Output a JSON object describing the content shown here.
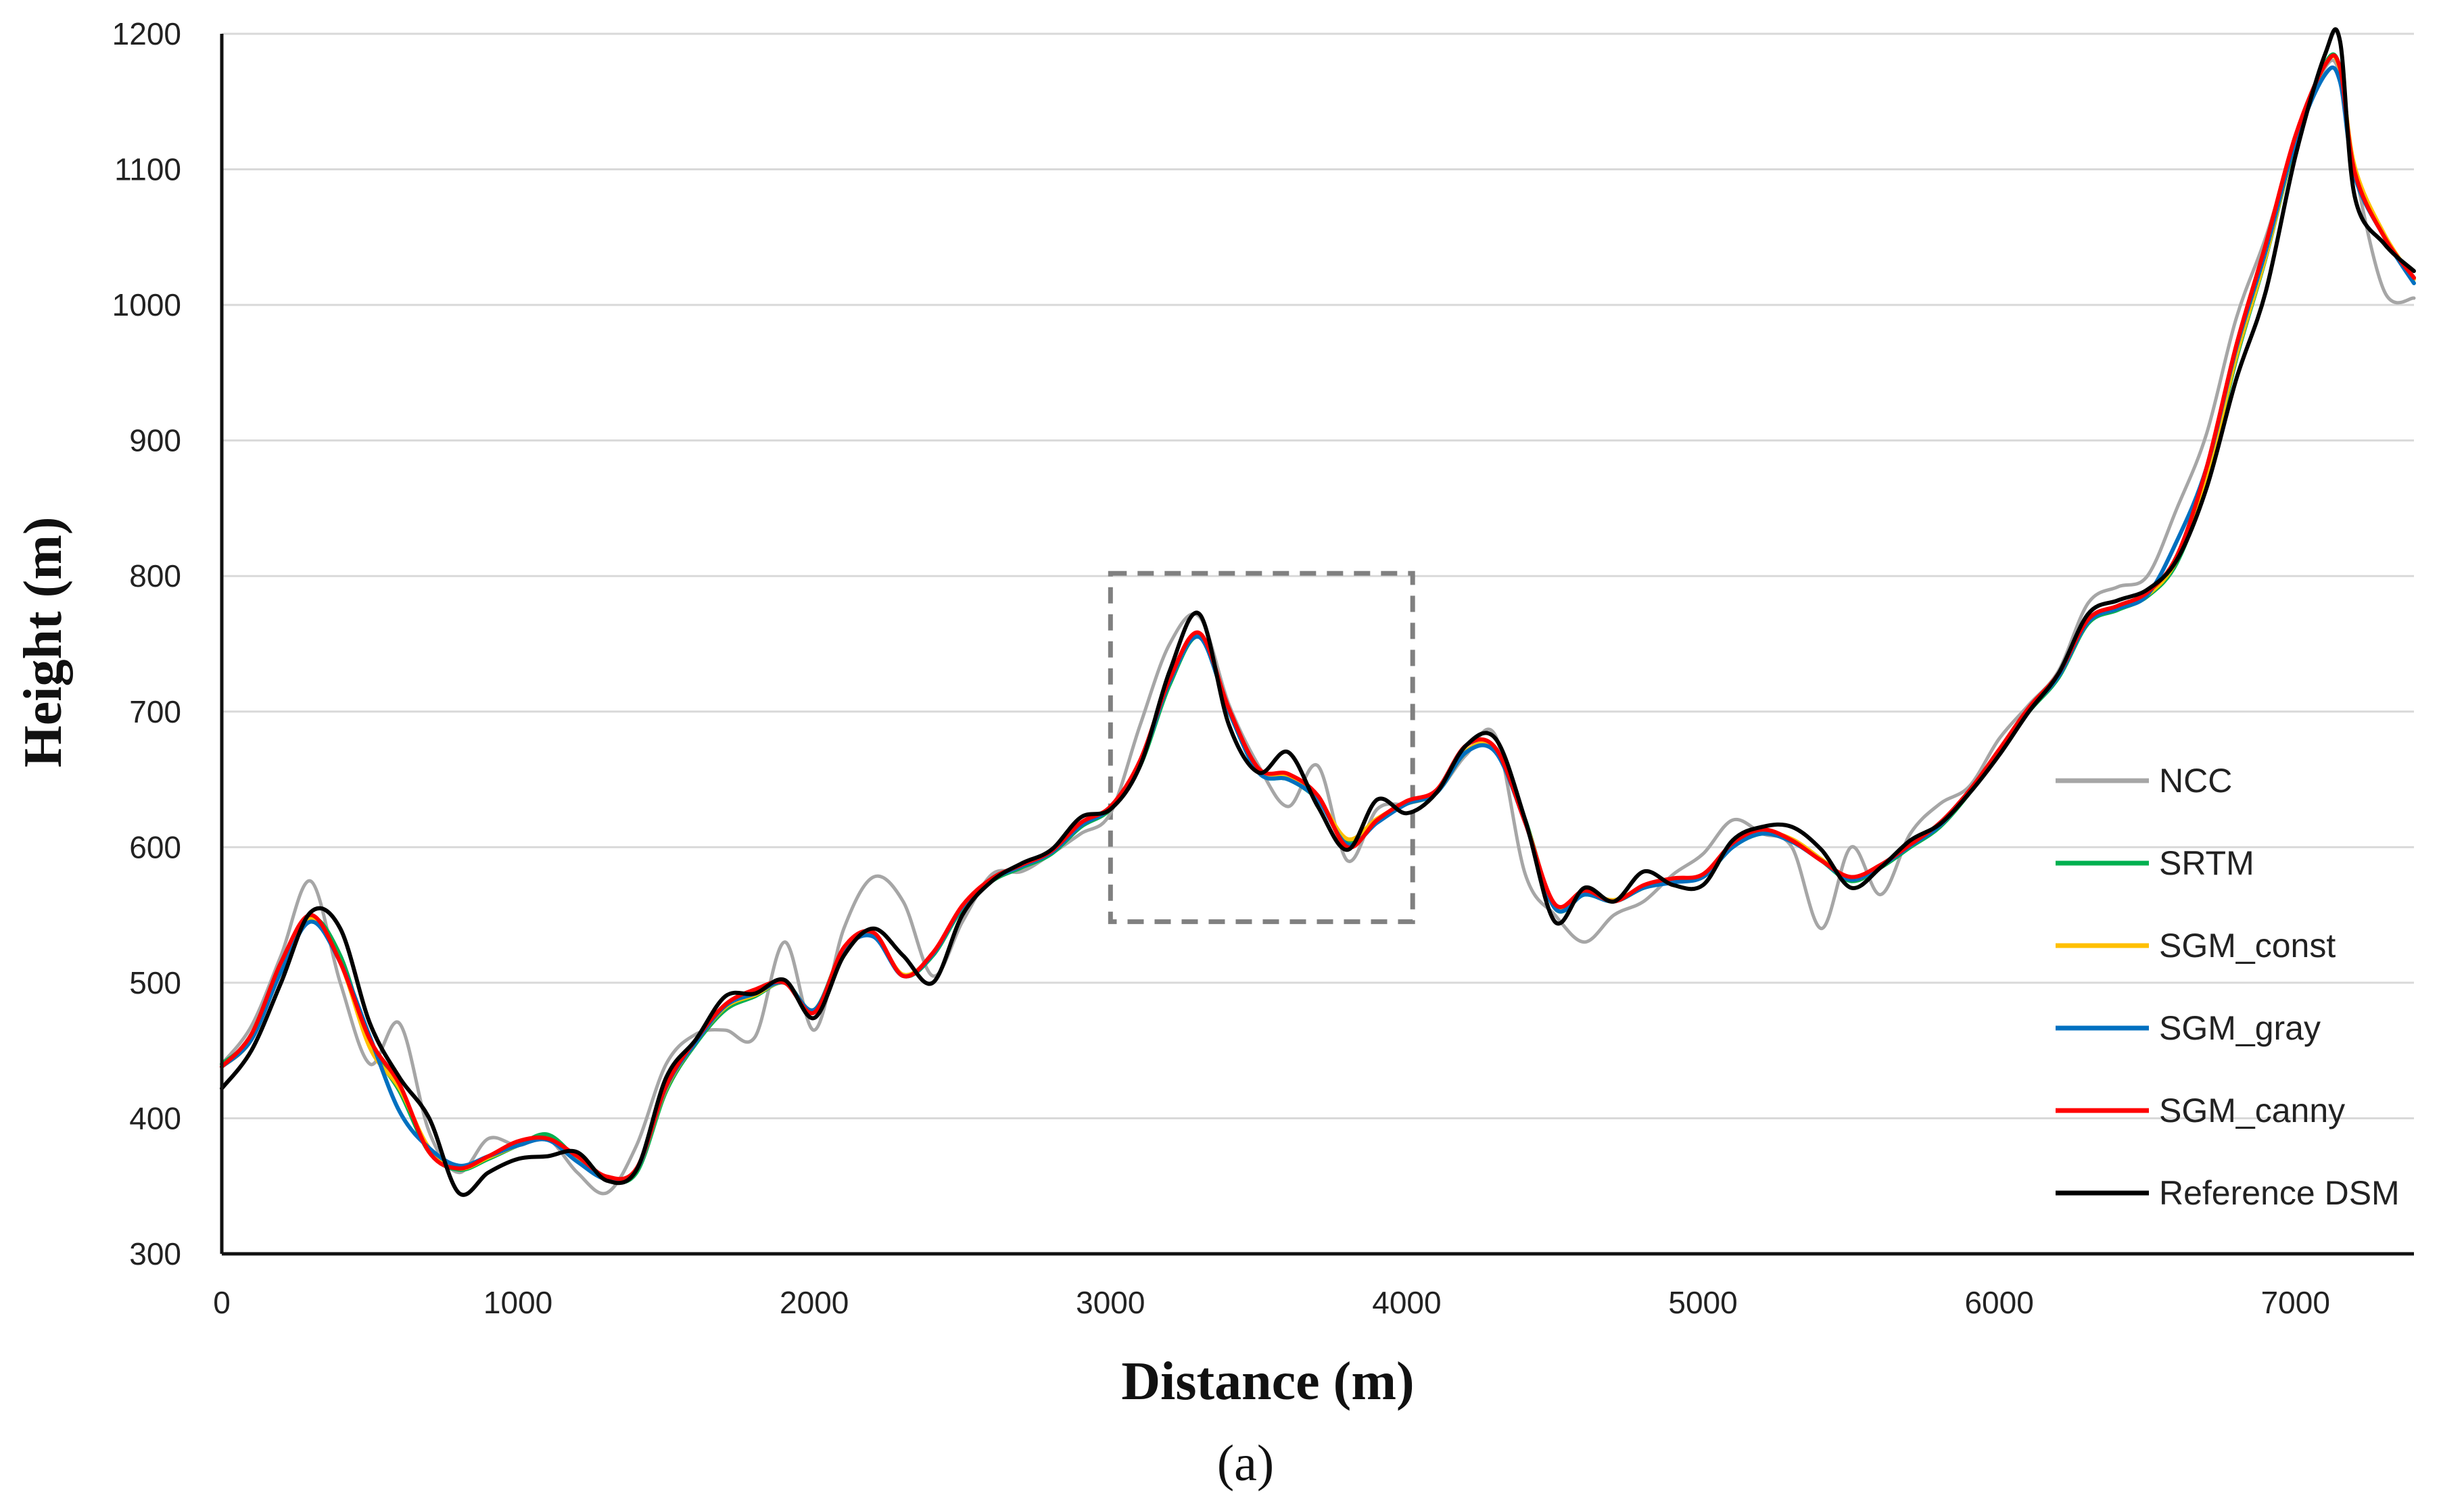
{
  "chart_data": {
    "type": "line",
    "xlabel": "Distance (m)",
    "ylabel": "Height (m)",
    "caption": "(a)",
    "xlim": [
      0,
      7400
    ],
    "ylim": [
      300,
      1200
    ],
    "xticks": [
      0,
      1000,
      2000,
      3000,
      4000,
      5000,
      6000,
      7000
    ],
    "yticks": [
      300,
      400,
      500,
      600,
      700,
      800,
      900,
      1000,
      1100,
      1200
    ],
    "grid": "horizontal",
    "legend_position": "right",
    "highlight_box": {
      "x": [
        3000,
        4020
      ],
      "y": [
        545,
        802
      ]
    },
    "colors": {
      "NCC": "#a6a6a6",
      "SRTM": "#00b050",
      "SGM_const": "#ffc000",
      "SGM_gray": "#0070c0",
      "SGM_canny": "#ff0000",
      "Reference DSM": "#000000",
      "grid": "#d9d9d9",
      "box": "#808080"
    },
    "x": [
      0,
      100,
      200,
      300,
      400,
      500,
      600,
      700,
      800,
      900,
      1000,
      1100,
      1200,
      1300,
      1400,
      1500,
      1600,
      1700,
      1800,
      1900,
      2000,
      2100,
      2200,
      2300,
      2400,
      2500,
      2600,
      2700,
      2800,
      2900,
      3000,
      3100,
      3200,
      3300,
      3400,
      3500,
      3600,
      3700,
      3800,
      3900,
      4000,
      4100,
      4200,
      4300,
      4400,
      4500,
      4600,
      4700,
      4800,
      4900,
      5000,
      5100,
      5200,
      5300,
      5400,
      5500,
      5600,
      5700,
      5800,
      5900,
      6000,
      6100,
      6200,
      6300,
      6400,
      6500,
      6600,
      6700,
      6800,
      6900,
      7000,
      7100,
      7150,
      7200,
      7300,
      7400
    ],
    "series": [
      {
        "name": "NCC",
        "values": [
          440,
          468,
          520,
          575,
          500,
          440,
          470,
          390,
          360,
          385,
          380,
          385,
          360,
          345,
          380,
          440,
          462,
          465,
          460,
          530,
          465,
          540,
          578,
          560,
          505,
          545,
          580,
          582,
          595,
          610,
          625,
          690,
          750,
          770,
          705,
          660,
          630,
          660,
          590,
          628,
          632,
          640,
          668,
          682,
          580,
          550,
          530,
          550,
          560,
          580,
          595,
          620,
          610,
          600,
          540,
          600,
          565,
          610,
          632,
          645,
          680,
          705,
          730,
          780,
          792,
          800,
          850,
          905,
          990,
          1050,
          1120,
          1175,
          1170,
          1100,
          1010,
          1005
        ],
        "color": "#a6a6a6"
      },
      {
        "name": "SRTM",
        "values": [
          440,
          460,
          510,
          548,
          520,
          455,
          420,
          375,
          362,
          370,
          380,
          388,
          370,
          355,
          360,
          420,
          455,
          480,
          490,
          500,
          480,
          525,
          535,
          505,
          520,
          555,
          575,
          585,
          595,
          615,
          628,
          660,
          720,
          755,
          700,
          655,
          650,
          635,
          605,
          620,
          632,
          640,
          670,
          672,
          620,
          555,
          565,
          560,
          570,
          575,
          578,
          600,
          610,
          605,
          590,
          575,
          585,
          600,
          615,
          640,
          670,
          700,
          725,
          765,
          775,
          785,
          810,
          870,
          960,
          1035,
          1120,
          1178,
          1175,
          1100,
          1050,
          1020
        ],
        "color": "#00b050"
      },
      {
        "name": "SGM_const",
        "values": [
          438,
          458,
          510,
          547,
          515,
          452,
          422,
          378,
          363,
          371,
          380,
          385,
          370,
          356,
          362,
          422,
          456,
          482,
          491,
          500,
          480,
          524,
          535,
          506,
          521,
          556,
          576,
          586,
          596,
          616,
          629,
          662,
          722,
          756,
          700,
          656,
          651,
          636,
          606,
          621,
          633,
          641,
          671,
          672,
          619,
          556,
          566,
          561,
          571,
          576,
          579,
          601,
          611,
          606,
          591,
          576,
          586,
          601,
          616,
          641,
          671,
          701,
          726,
          766,
          776,
          786,
          812,
          872,
          962,
          1036,
          1121,
          1177,
          1174,
          1102,
          1052,
          1019
        ],
        "color": "#ffc000"
      },
      {
        "name": "SGM_gray",
        "values": [
          438,
          458,
          508,
          545,
          515,
          460,
          405,
          378,
          365,
          372,
          380,
          384,
          368,
          355,
          362,
          423,
          456,
          483,
          492,
          500,
          480,
          524,
          534,
          505,
          521,
          556,
          576,
          586,
          596,
          616,
          629,
          662,
          722,
          755,
          700,
          655,
          650,
          635,
          602,
          618,
          632,
          640,
          670,
          670,
          618,
          555,
          565,
          560,
          570,
          574,
          578,
          600,
          610,
          604,
          590,
          576,
          586,
          601,
          616,
          641,
          671,
          701,
          726,
          766,
          776,
          786,
          826,
          880,
          968,
          1040,
          1120,
          1170,
          1165,
          1095,
          1050,
          1016
        ],
        "color": "#0070c0"
      },
      {
        "name": "SGM_canny",
        "values": [
          438,
          462,
          515,
          550,
          515,
          458,
          425,
          375,
          363,
          372,
          383,
          385,
          372,
          357,
          363,
          424,
          458,
          484,
          495,
          500,
          478,
          526,
          537,
          505,
          522,
          557,
          577,
          587,
          597,
          618,
          630,
          664,
          724,
          758,
          702,
          658,
          654,
          638,
          600,
          620,
          634,
          642,
          675,
          673,
          618,
          558,
          568,
          560,
          572,
          577,
          580,
          603,
          613,
          605,
          590,
          578,
          587,
          602,
          618,
          642,
          672,
          703,
          728,
          768,
          778,
          788,
          815,
          880,
          970,
          1045,
          1125,
          1177,
          1175,
          1098,
          1050,
          1020
        ],
        "color": "#ff0000"
      },
      {
        "name": "Reference DSM",
        "values": [
          422,
          450,
          500,
          552,
          540,
          470,
          430,
          400,
          345,
          360,
          370,
          372,
          375,
          354,
          362,
          430,
          458,
          490,
          492,
          502,
          474,
          520,
          540,
          520,
          500,
          550,
          575,
          588,
          598,
          622,
          628,
          660,
          730,
          772,
          690,
          655,
          670,
          630,
          598,
          635,
          625,
          640,
          675,
          680,
          620,
          545,
          570,
          560,
          582,
          572,
          572,
          605,
          615,
          615,
          598,
          570,
          585,
          605,
          617,
          640,
          668,
          700,
          728,
          772,
          782,
          790,
          812,
          865,
          945,
          1010,
          1110,
          1185,
          1195,
          1080,
          1045,
          1025
        ],
        "color": "#000000"
      }
    ]
  }
}
